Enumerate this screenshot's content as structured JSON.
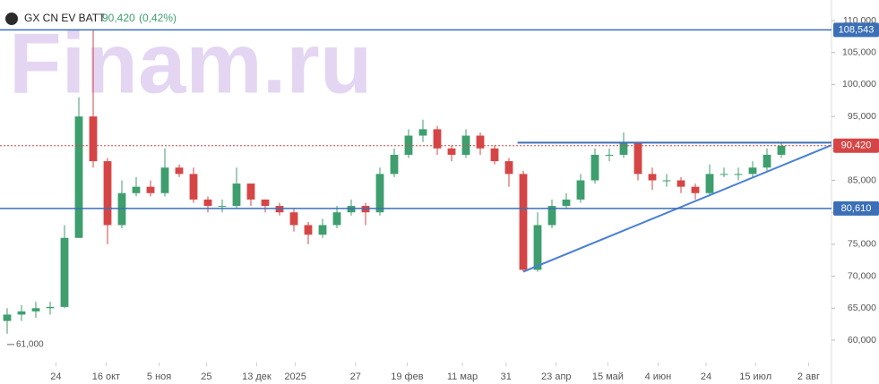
{
  "chart_data": {
    "type": "candlestick",
    "title": "GX CN EV BATT",
    "last_price_label": "90,420",
    "change_label": "(0,42%)",
    "watermark": "Finam.ru",
    "up_color": "#3e9e6e",
    "down_color": "#d64545",
    "open": [
      63000,
      64000,
      64500,
      65000,
      65200,
      76000,
      95000,
      88000,
      78000,
      83000,
      84000,
      83000,
      87000,
      86000,
      82000,
      81000,
      81000,
      84500,
      82000,
      81000,
      80000,
      78000,
      76500,
      78000,
      80000,
      81000,
      80000,
      86000,
      89000,
      92000,
      93000,
      90000,
      89000,
      92000,
      90000,
      88000,
      86000,
      71000,
      78000,
      81000,
      82000,
      85000,
      89000,
      89000,
      91000,
      86000,
      85000,
      85000,
      84000,
      83000,
      86000,
      86000,
      86000,
      87000,
      89000
    ],
    "high": [
      65000,
      65500,
      66000,
      66000,
      78000,
      98000,
      108543,
      88500,
      85000,
      85500,
      85000,
      90000,
      87500,
      87000,
      82500,
      82000,
      87000,
      84500,
      82000,
      81500,
      80500,
      78500,
      79000,
      81000,
      82000,
      81500,
      87000,
      90000,
      93000,
      94500,
      93500,
      90500,
      93000,
      92500,
      90500,
      88500,
      86500,
      80000,
      82000,
      83000,
      86000,
      90000,
      90000,
      92500,
      91000,
      87000,
      86000,
      85500,
      84500,
      87500,
      87000,
      87000,
      88000,
      90000,
      91000
    ],
    "low": [
      61000,
      63000,
      63500,
      64000,
      65000,
      76000,
      87000,
      75000,
      77500,
      82500,
      82500,
      82500,
      85500,
      81500,
      80000,
      80000,
      80500,
      81000,
      80000,
      79500,
      77000,
      75000,
      76000,
      77500,
      79500,
      78000,
      79500,
      85500,
      88500,
      91000,
      89000,
      88000,
      88500,
      89000,
      87500,
      84000,
      70700,
      70700,
      77500,
      80500,
      81500,
      84500,
      88000,
      88500,
      85000,
      83500,
      84000,
      83000,
      82000,
      82500,
      85500,
      85000,
      85500,
      86500,
      88500
    ],
    "close": [
      64000,
      64500,
      65000,
      65200,
      76000,
      95000,
      88000,
      78000,
      83000,
      84000,
      83000,
      87000,
      86000,
      82000,
      81000,
      81000,
      84500,
      82000,
      81000,
      80000,
      78000,
      76500,
      78000,
      80000,
      81000,
      80000,
      86000,
      89000,
      92000,
      93000,
      90000,
      89000,
      92000,
      90000,
      88000,
      86000,
      71000,
      78000,
      81000,
      82000,
      85000,
      89000,
      89000,
      91000,
      86000,
      85000,
      85000,
      84000,
      83000,
      86000,
      86000,
      86000,
      87000,
      89000,
      90420
    ],
    "xlim": [
      -0.5,
      57.5
    ],
    "ylim": [
      60000,
      110000
    ],
    "yticks": [
      {
        "value": 60000,
        "label": "60,000"
      },
      {
        "value": 65000,
        "label": "65,000"
      },
      {
        "value": 70000,
        "label": "70,000"
      },
      {
        "value": 75000,
        "label": "75,000"
      },
      {
        "value": 80000,
        "label": "80,000"
      },
      {
        "value": 85000,
        "label": "85,000"
      },
      {
        "value": 90000,
        "label": "90,000"
      },
      {
        "value": 95000,
        "label": "95,000"
      },
      {
        "value": 100000,
        "label": "100,000"
      },
      {
        "value": 105000,
        "label": "105,000"
      },
      {
        "value": 110000,
        "label": "110,000"
      }
    ],
    "xticks": [
      {
        "value": 3.4,
        "label": "24"
      },
      {
        "value": 6.9,
        "label": "16 окт"
      },
      {
        "value": 10.6,
        "label": "5 ноя"
      },
      {
        "value": 13.9,
        "label": "25"
      },
      {
        "value": 17.4,
        "label": "13 дек"
      },
      {
        "value": 20.1,
        "label": "2025"
      },
      {
        "value": 24.3,
        "label": "27"
      },
      {
        "value": 27.9,
        "label": "19 фев"
      },
      {
        "value": 31.75,
        "label": "11 мар"
      },
      {
        "value": 34.8,
        "label": "31"
      },
      {
        "value": 38.3,
        "label": "23 апр"
      },
      {
        "value": 41.9,
        "label": "15 май"
      },
      {
        "value": 45.4,
        "label": "4 июн"
      },
      {
        "value": 48.75,
        "label": "24"
      },
      {
        "value": 52.2,
        "label": "15 июл"
      },
      {
        "value": 55.9,
        "label": "2 авг"
      }
    ],
    "levels": [
      {
        "value": 108543,
        "label": "108,543",
        "color": "#3b6fb6",
        "style": "solid"
      },
      {
        "value": 80610,
        "label": "80,610",
        "color": "#3b6fb6",
        "style": "solid"
      },
      {
        "value": 90420,
        "label": "90,420",
        "color": "#d64545",
        "style": "dotted"
      }
    ],
    "trendlines": [
      {
        "x": [
          35.6,
          57.5
        ],
        "y": [
          90900,
          90900
        ],
        "color": "#3b6fb6"
      },
      {
        "x": [
          36,
          57.5
        ],
        "y": [
          70700,
          90500
        ],
        "color": "#4a7fd6"
      }
    ],
    "low_marker": {
      "x": 0,
      "value": 61000,
      "label": "61,000"
    }
  }
}
